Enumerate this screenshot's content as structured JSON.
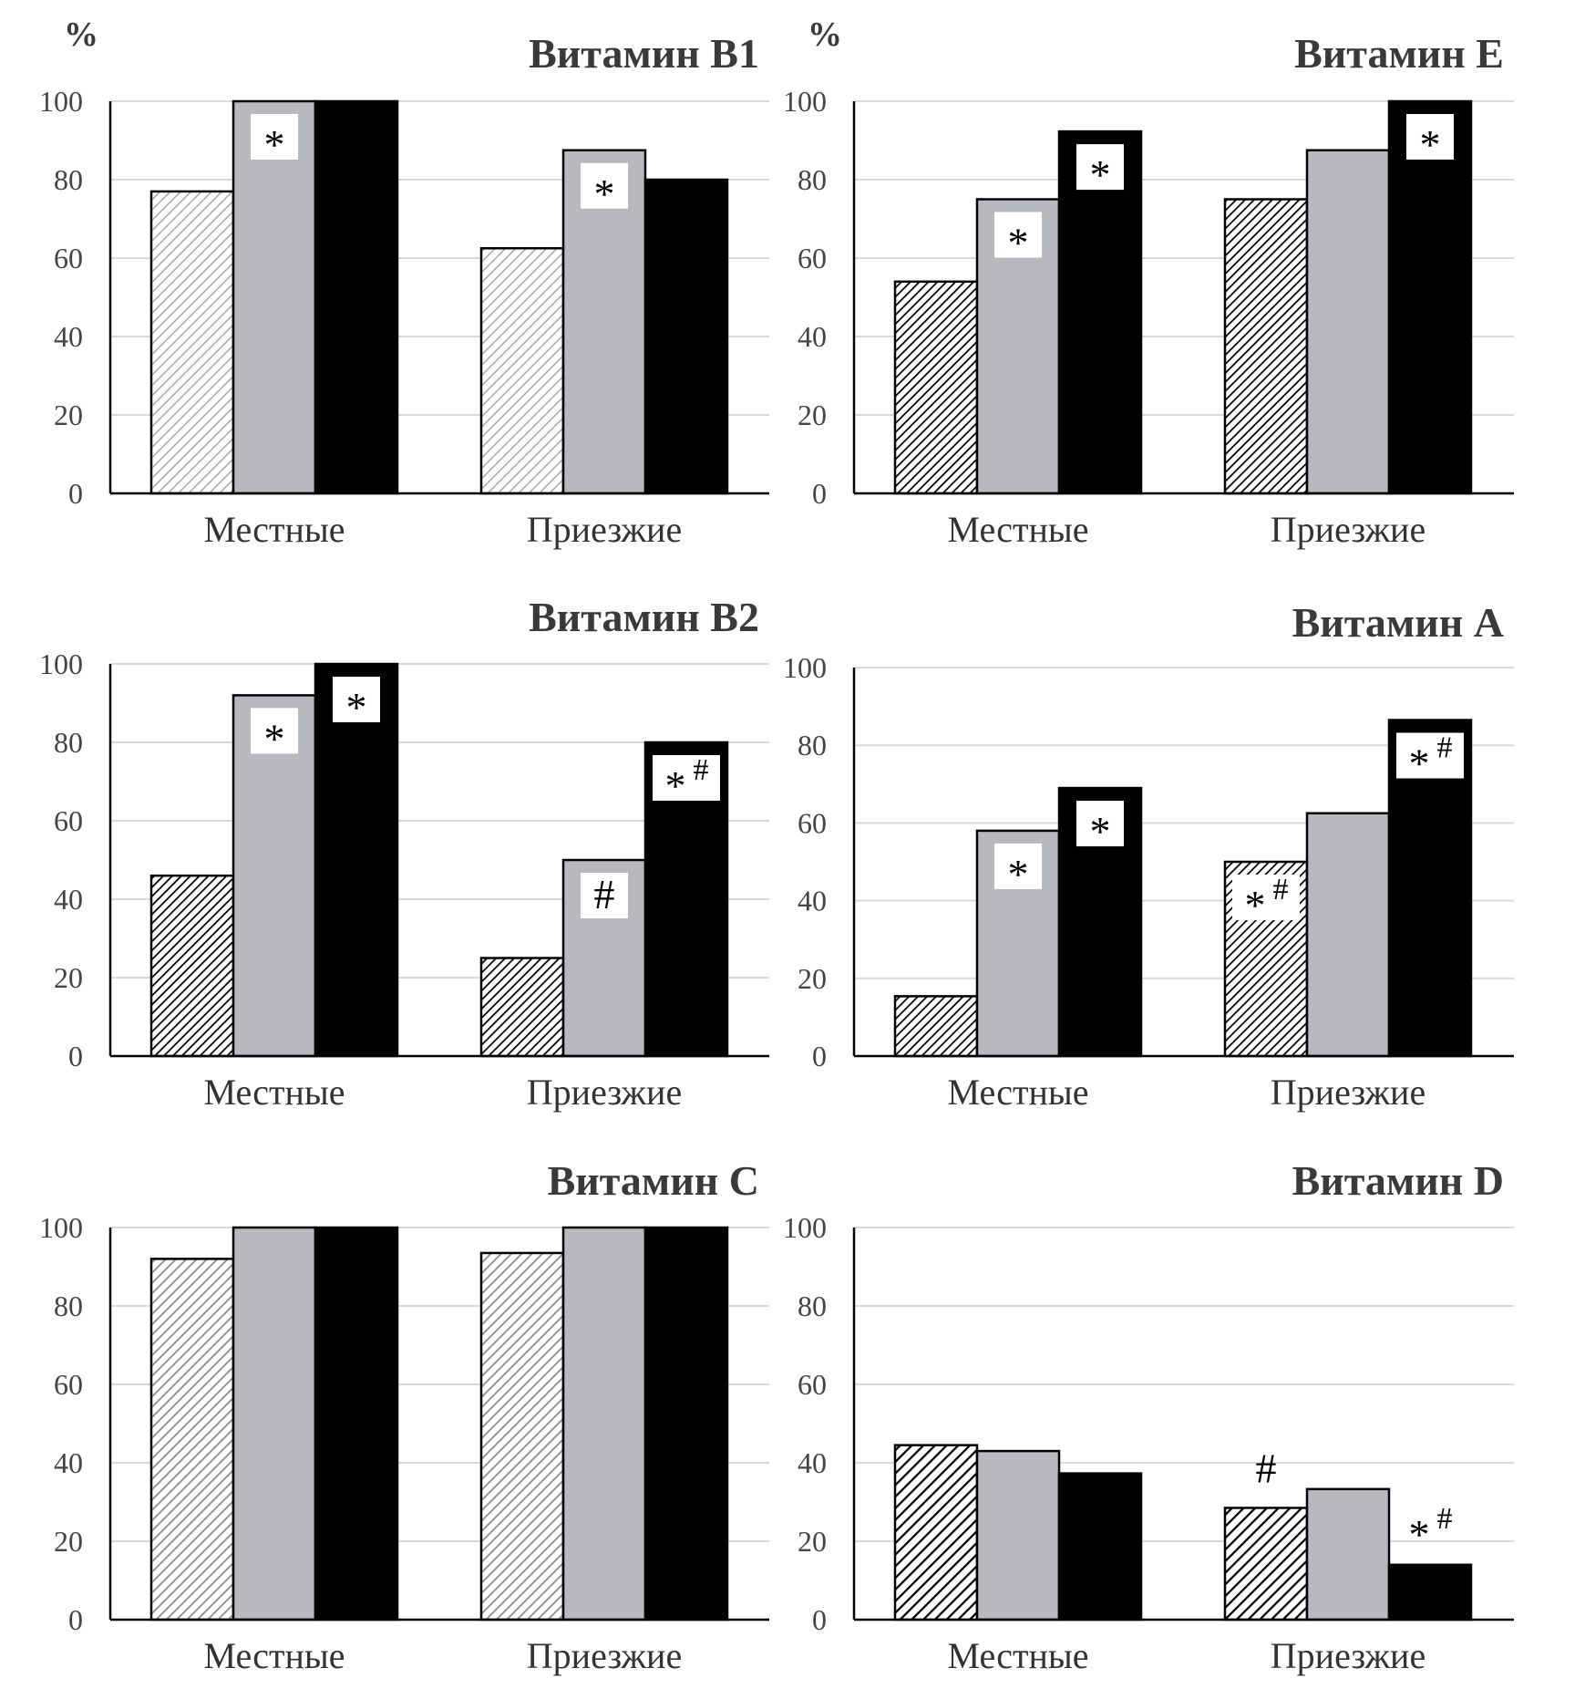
{
  "chart_data": [
    {
      "type": "bar",
      "title": "Витамин B1",
      "unit_label": "%",
      "categories": [
        "Местные",
        "Приезжие"
      ],
      "ylim": [
        0,
        100
      ],
      "yticks": [
        0,
        20,
        40,
        60,
        80,
        100
      ],
      "grid": true,
      "pattern": "light",
      "series": [
        {
          "values": [
            77,
            62.5
          ]
        },
        {
          "values": [
            100,
            87.5
          ]
        },
        {
          "values": [
            100,
            80
          ]
        }
      ],
      "annotations": [
        {
          "category": 0,
          "series": 1,
          "text": "*",
          "sup": "",
          "boxed": true
        },
        {
          "category": 1,
          "series": 1,
          "text": "*",
          "sup": "",
          "boxed": true
        }
      ]
    },
    {
      "type": "bar",
      "title": "Витамин E",
      "unit_label": "%",
      "categories": [
        "Местные",
        "Приезжие"
      ],
      "ylim": [
        0,
        100
      ],
      "yticks": [
        0,
        20,
        40,
        60,
        80,
        100
      ],
      "grid": true,
      "pattern": "dense",
      "series": [
        {
          "values": [
            54,
            75
          ]
        },
        {
          "values": [
            75,
            87.5
          ]
        },
        {
          "values": [
            92.3,
            100
          ]
        }
      ],
      "annotations": [
        {
          "category": 0,
          "series": 1,
          "text": "*",
          "sup": "",
          "boxed": true
        },
        {
          "category": 0,
          "series": 2,
          "text": "*",
          "sup": "",
          "boxed": true
        },
        {
          "category": 1,
          "series": 2,
          "text": "*",
          "sup": "",
          "boxed": true
        }
      ]
    },
    {
      "type": "bar",
      "title": "Витамин B2",
      "unit_label": "",
      "categories": [
        "Местные",
        "Приезжие"
      ],
      "ylim": [
        0,
        100
      ],
      "yticks": [
        0,
        20,
        40,
        60,
        80,
        100
      ],
      "grid": true,
      "pattern": "dense",
      "series": [
        {
          "values": [
            46,
            25
          ]
        },
        {
          "values": [
            92,
            50
          ]
        },
        {
          "values": [
            100,
            80
          ]
        }
      ],
      "annotations": [
        {
          "category": 0,
          "series": 1,
          "text": "*",
          "sup": "",
          "boxed": true
        },
        {
          "category": 0,
          "series": 2,
          "text": "*",
          "sup": "",
          "boxed": true
        },
        {
          "category": 1,
          "series": 1,
          "text": "#",
          "sup": "",
          "boxed": true
        },
        {
          "category": 1,
          "series": 2,
          "text": "*",
          "sup": "#",
          "boxed": true
        }
      ]
    },
    {
      "type": "bar",
      "title": "Витамин A",
      "unit_label": "",
      "categories": [
        "Местные",
        "Приезжие"
      ],
      "ylim": [
        0,
        100
      ],
      "yticks": [
        0,
        20,
        40,
        60,
        80,
        100
      ],
      "grid": true,
      "pattern": "dense",
      "series": [
        {
          "values": [
            15.4,
            50
          ]
        },
        {
          "values": [
            58,
            62.5
          ]
        },
        {
          "values": [
            69,
            86.5
          ]
        }
      ],
      "annotations": [
        {
          "category": 0,
          "series": 1,
          "text": "*",
          "sup": "",
          "boxed": true
        },
        {
          "category": 0,
          "series": 2,
          "text": "*",
          "sup": "",
          "boxed": true
        },
        {
          "category": 1,
          "series": 0,
          "text": "*",
          "sup": "#",
          "boxed": true
        },
        {
          "category": 1,
          "series": 2,
          "text": "*",
          "sup": "#",
          "boxed": true
        }
      ]
    },
    {
      "type": "bar",
      "title": "Витамин C",
      "unit_label": "",
      "categories": [
        "Местные",
        "Приезжие"
      ],
      "ylim": [
        0,
        100
      ],
      "yticks": [
        0,
        20,
        40,
        60,
        80,
        100
      ],
      "grid": true,
      "pattern": "medium",
      "series": [
        {
          "values": [
            92,
            93.5
          ]
        },
        {
          "values": [
            100,
            100
          ]
        },
        {
          "values": [
            100,
            100
          ]
        }
      ],
      "annotations": []
    },
    {
      "type": "bar",
      "title": "Витамин D",
      "unit_label": "",
      "categories": [
        "Местные",
        "Приезжие"
      ],
      "ylim": [
        0,
        100
      ],
      "yticks": [
        0,
        20,
        40,
        60,
        80,
        100
      ],
      "grid": true,
      "pattern": "bold",
      "series": [
        {
          "values": [
            44.5,
            28.5
          ]
        },
        {
          "values": [
            43,
            33.3
          ]
        },
        {
          "values": [
            37.3,
            14
          ]
        }
      ],
      "annotations": [
        {
          "category": 1,
          "series": 0,
          "text": "#",
          "sup": "",
          "boxed": false
        },
        {
          "category": 1,
          "series": 2,
          "text": "*",
          "sup": "#",
          "boxed": false
        }
      ]
    }
  ],
  "colors": {
    "series_hatch": "#000000",
    "series_gray": "#b8b9bd",
    "series_black": "#000000",
    "grid": "#d9d9d9",
    "axis": "#000000",
    "text": "#444444"
  }
}
